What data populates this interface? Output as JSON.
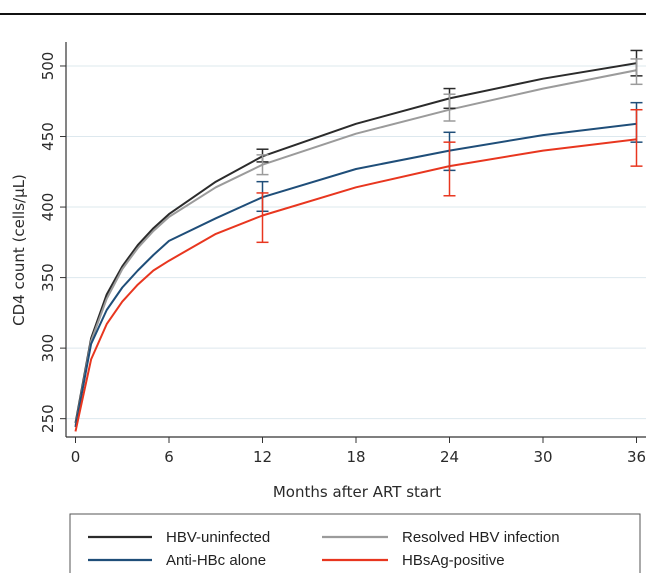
{
  "chart_data": {
    "type": "line",
    "title": "",
    "xlabel": "Months after ART start",
    "ylabel": "CD4 count (cells/μL)",
    "xlim": [
      -0.5,
      36.5
    ],
    "ylim": [
      237,
      517
    ],
    "xticks": [
      0,
      6,
      12,
      18,
      24,
      30,
      36
    ],
    "yticks": [
      250,
      300,
      350,
      400,
      450,
      500
    ],
    "x": [
      0,
      1,
      2,
      3,
      4,
      5,
      6,
      9,
      12,
      18,
      24,
      30,
      36
    ],
    "grid": true,
    "legend_position": "bottom",
    "series": [
      {
        "name": "HBV-uninfected",
        "color": "#2b2b2b",
        "values": [
          247,
          307,
          338,
          358,
          373,
          385,
          395,
          418,
          436,
          459,
          477,
          491,
          502
        ],
        "error_bars": [
          {
            "x": 12,
            "low": 432,
            "high": 441
          },
          {
            "x": 24,
            "low": 470,
            "high": 484
          },
          {
            "x": 36,
            "low": 493,
            "high": 511
          }
        ]
      },
      {
        "name": "Resolved HBV infection",
        "color": "#9b9b9b",
        "values": [
          245,
          305,
          335,
          356,
          371,
          383,
          393,
          414,
          430,
          452,
          469,
          484,
          497
        ],
        "error_bars": [
          {
            "x": 12,
            "low": 423,
            "high": 437
          },
          {
            "x": 24,
            "low": 461,
            "high": 480
          },
          {
            "x": 36,
            "low": 487,
            "high": 505
          }
        ]
      },
      {
        "name": "Anti-HBc alone",
        "color": "#1f4e79",
        "values": [
          244,
          303,
          327,
          343,
          355,
          366,
          376,
          392,
          407,
          427,
          440,
          451,
          459
        ],
        "error_bars": [
          {
            "x": 12,
            "low": 397,
            "high": 418
          },
          {
            "x": 24,
            "low": 426,
            "high": 453
          },
          {
            "x": 36,
            "low": 446,
            "high": 474
          }
        ]
      },
      {
        "name": "HBsAg-positive",
        "color": "#e8361f",
        "values": [
          241,
          292,
          317,
          333,
          345,
          355,
          362,
          381,
          394,
          414,
          429,
          440,
          448
        ],
        "error_bars": [
          {
            "x": 12,
            "low": 375,
            "high": 410
          },
          {
            "x": 24,
            "low": 408,
            "high": 446
          },
          {
            "x": 36,
            "low": 429,
            "high": 469
          }
        ]
      }
    ]
  }
}
